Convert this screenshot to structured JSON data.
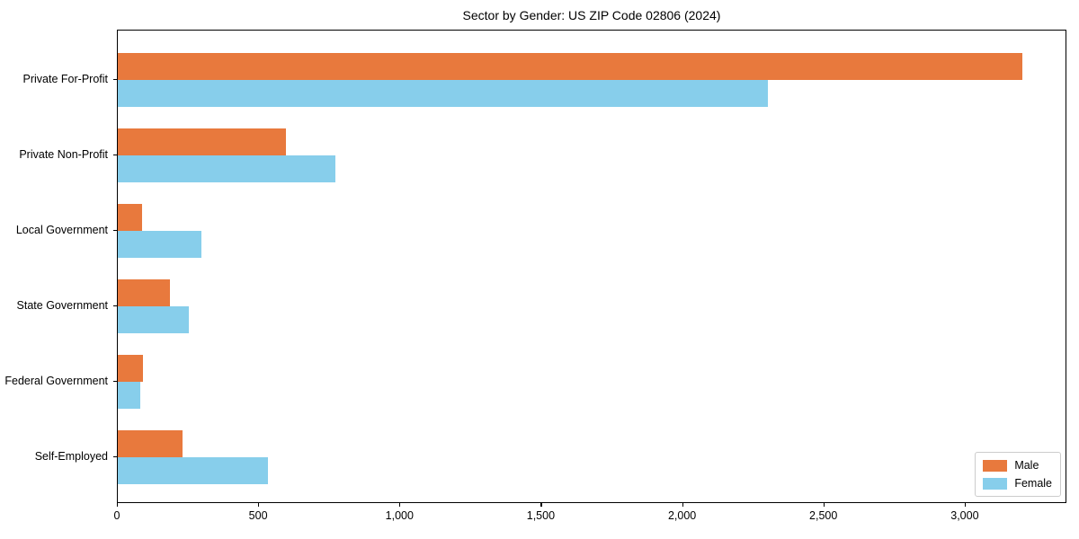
{
  "title": "Sector by Gender: US ZIP Code 02806 (2024)",
  "colors": {
    "male": "#e8793d",
    "female": "#87ceeb",
    "axis": "#000000",
    "legend_border": "#cccccc",
    "background": "#ffffff"
  },
  "chart_data": {
    "type": "bar",
    "orientation": "horizontal",
    "title": "Sector by Gender: US ZIP Code 02806 (2024)",
    "categories": [
      "Private For-Profit",
      "Private Non-Profit",
      "Local Government",
      "State Government",
      "Federal Government",
      "Self-Employed"
    ],
    "series": [
      {
        "name": "Male",
        "color": "#e8793d",
        "values": [
          3200,
          595,
          85,
          185,
          90,
          230
        ]
      },
      {
        "name": "Female",
        "color": "#87ceeb",
        "values": [
          2300,
          770,
          295,
          250,
          80,
          530
        ]
      }
    ],
    "xlabel": "",
    "ylabel": "",
    "xlim": [
      0,
      3360
    ],
    "xticks": [
      0,
      500,
      1000,
      1500,
      2000,
      2500,
      3000
    ],
    "xtick_labels": [
      "0",
      "500",
      "1,000",
      "1,500",
      "2,000",
      "2,500",
      "3,000"
    ],
    "grid": false,
    "legend": {
      "position": "lower right",
      "entries": [
        "Male",
        "Female"
      ]
    }
  }
}
